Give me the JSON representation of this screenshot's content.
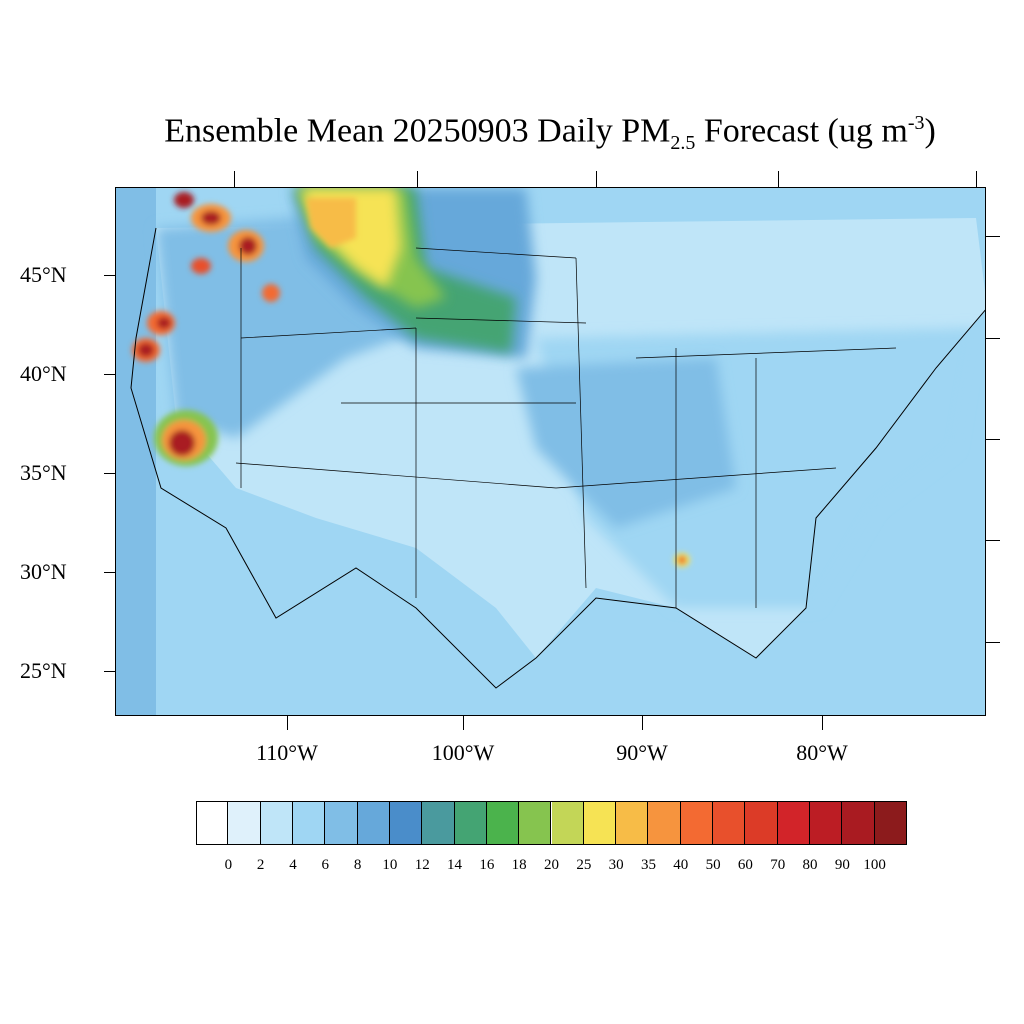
{
  "title": {
    "prefix": "Ensemble Mean 20250903 Daily PM",
    "subscript": "2.5",
    "middle": " Forecast (ug m",
    "superscript": "-3",
    "suffix": ")"
  },
  "axes": {
    "latitude_labels": [
      "45°N",
      "40°N",
      "35°N",
      "30°N",
      "25°N"
    ],
    "longitude_labels": [
      "110°W",
      "100°W",
      "90°W",
      "80°W"
    ]
  },
  "legend": {
    "levels": [
      "0",
      "2",
      "4",
      "6",
      "8",
      "10",
      "12",
      "14",
      "16",
      "18",
      "20",
      "25",
      "30",
      "35",
      "40",
      "50",
      "60",
      "70",
      "80",
      "90",
      "100"
    ],
    "colors": [
      "#ffffff",
      "#dff1fb",
      "#bfe5f8",
      "#9fd6f3",
      "#80bee6",
      "#66a8da",
      "#4a8dca",
      "#4a9a9e",
      "#44a473",
      "#4bb34c",
      "#86c44f",
      "#c3d657",
      "#f6e354",
      "#f7bc47",
      "#f6943e",
      "#f36a32",
      "#e8502c",
      "#dc3b27",
      "#d22429",
      "#bc1d24",
      "#a91b21",
      "#8c1b1c"
    ]
  },
  "map_features": {
    "background_level": "6",
    "plume_northern_plains": "smoke plume 16–30",
    "hotspots": [
      "Pacific Northwest",
      "Northern California",
      "Sierra Nevada",
      "Idaho",
      "Alabama"
    ]
  }
}
